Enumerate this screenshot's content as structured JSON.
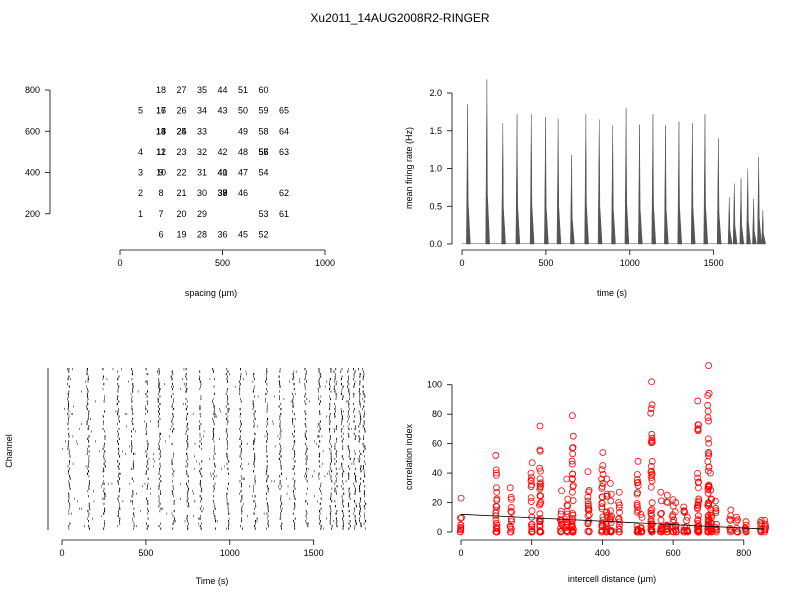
{
  "figure_title": "Xu2011_14AUG2008R2-RINGER",
  "chart_data": [
    {
      "id": "electrode-layout",
      "type": "scatter",
      "xlabel": "spacing (µm)",
      "ylabel": "",
      "xlim": [
        0,
        1000
      ],
      "ylim": [
        0,
        800
      ],
      "xticks": [
        0,
        500,
        1000
      ],
      "yticks": [
        200,
        400,
        600,
        800
      ],
      "labels": [
        {
          "text": "1",
          "x": 100,
          "y": 200
        },
        {
          "text": "2",
          "x": 100,
          "y": 300
        },
        {
          "text": "3",
          "x": 100,
          "y": 400
        },
        {
          "text": "4",
          "x": 100,
          "y": 500
        },
        {
          "text": "5",
          "x": 100,
          "y": 700
        },
        {
          "text": "6",
          "x": 200,
          "y": 100
        },
        {
          "text": "7",
          "x": 200,
          "y": 200
        },
        {
          "text": "8",
          "x": 200,
          "y": 300
        },
        {
          "text": "9",
          "x": 200,
          "y": 400
        },
        {
          "text": "10",
          "x": 200,
          "y": 400
        },
        {
          "text": "11",
          "x": 200,
          "y": 500
        },
        {
          "text": "12",
          "x": 200,
          "y": 500
        },
        {
          "text": "13",
          "x": 200,
          "y": 600
        },
        {
          "text": "14",
          "x": 200,
          "y": 600
        },
        {
          "text": "15",
          "x": 200,
          "y": 600
        },
        {
          "text": "16",
          "x": 200,
          "y": 700
        },
        {
          "text": "17",
          "x": 200,
          "y": 700
        },
        {
          "text": "18",
          "x": 200,
          "y": 800
        },
        {
          "text": "19",
          "x": 300,
          "y": 100
        },
        {
          "text": "20",
          "x": 300,
          "y": 200
        },
        {
          "text": "21",
          "x": 300,
          "y": 300
        },
        {
          "text": "22",
          "x": 300,
          "y": 400
        },
        {
          "text": "23",
          "x": 300,
          "y": 500
        },
        {
          "text": "24",
          "x": 300,
          "y": 600
        },
        {
          "text": "25",
          "x": 300,
          "y": 600
        },
        {
          "text": "26",
          "x": 300,
          "y": 700
        },
        {
          "text": "27",
          "x": 300,
          "y": 800
        },
        {
          "text": "28",
          "x": 400,
          "y": 100
        },
        {
          "text": "29",
          "x": 400,
          "y": 200
        },
        {
          "text": "30",
          "x": 400,
          "y": 300
        },
        {
          "text": "31",
          "x": 400,
          "y": 400
        },
        {
          "text": "32",
          "x": 400,
          "y": 500
        },
        {
          "text": "33",
          "x": 400,
          "y": 600
        },
        {
          "text": "34",
          "x": 400,
          "y": 700
        },
        {
          "text": "35",
          "x": 400,
          "y": 800
        },
        {
          "text": "36",
          "x": 500,
          "y": 100
        },
        {
          "text": "37",
          "x": 500,
          "y": 300
        },
        {
          "text": "38",
          "x": 500,
          "y": 300
        },
        {
          "text": "39",
          "x": 500,
          "y": 300
        },
        {
          "text": "40",
          "x": 500,
          "y": 400
        },
        {
          "text": "41",
          "x": 500,
          "y": 400
        },
        {
          "text": "42",
          "x": 500,
          "y": 500
        },
        {
          "text": "43",
          "x": 500,
          "y": 700
        },
        {
          "text": "44",
          "x": 500,
          "y": 800
        },
        {
          "text": "45",
          "x": 600,
          "y": 100
        },
        {
          "text": "46",
          "x": 600,
          "y": 300
        },
        {
          "text": "47",
          "x": 600,
          "y": 400
        },
        {
          "text": "48",
          "x": 600,
          "y": 500
        },
        {
          "text": "49",
          "x": 600,
          "y": 600
        },
        {
          "text": "50",
          "x": 600,
          "y": 700
        },
        {
          "text": "51",
          "x": 600,
          "y": 800
        },
        {
          "text": "52",
          "x": 700,
          "y": 100
        },
        {
          "text": "53",
          "x": 700,
          "y": 200
        },
        {
          "text": "54",
          "x": 700,
          "y": 400
        },
        {
          "text": "55",
          "x": 700,
          "y": 500
        },
        {
          "text": "56",
          "x": 700,
          "y": 500
        },
        {
          "text": "57",
          "x": 700,
          "y": 500
        },
        {
          "text": "58",
          "x": 700,
          "y": 600
        },
        {
          "text": "59",
          "x": 700,
          "y": 700
        },
        {
          "text": "60",
          "x": 700,
          "y": 800
        },
        {
          "text": "61",
          "x": 800,
          "y": 200
        },
        {
          "text": "62",
          "x": 800,
          "y": 300
        },
        {
          "text": "63",
          "x": 800,
          "y": 500
        },
        {
          "text": "64",
          "x": 800,
          "y": 600
        },
        {
          "text": "65",
          "x": 800,
          "y": 700
        }
      ]
    },
    {
      "id": "firing-rate",
      "type": "line",
      "xlabel": "time (s)",
      "ylabel": "mean firing rate (Hz)",
      "xlim": [
        0,
        1800
      ],
      "ylim": [
        0,
        2.0
      ],
      "xticks": [
        0,
        500,
        1000,
        1500
      ],
      "yticks": [
        0.0,
        0.5,
        1.0,
        1.5,
        2.0
      ],
      "color": "#555555",
      "bursts": [
        {
          "t": 35,
          "peak": 1.85
        },
        {
          "t": 150,
          "peak": 2.18
        },
        {
          "t": 245,
          "peak": 1.6
        },
        {
          "t": 330,
          "peak": 1.72
        },
        {
          "t": 415,
          "peak": 1.72
        },
        {
          "t": 500,
          "peak": 1.68
        },
        {
          "t": 575,
          "peak": 1.66
        },
        {
          "t": 655,
          "peak": 1.18
        },
        {
          "t": 740,
          "peak": 1.72
        },
        {
          "t": 820,
          "peak": 1.65
        },
        {
          "t": 900,
          "peak": 1.57
        },
        {
          "t": 980,
          "peak": 1.8
        },
        {
          "t": 1060,
          "peak": 1.58
        },
        {
          "t": 1140,
          "peak": 1.72
        },
        {
          "t": 1215,
          "peak": 1.57
        },
        {
          "t": 1295,
          "peak": 1.62
        },
        {
          "t": 1375,
          "peak": 1.6
        },
        {
          "t": 1450,
          "peak": 1.72
        },
        {
          "t": 1530,
          "peak": 1.4
        },
        {
          "t": 1595,
          "peak": 0.62
        },
        {
          "t": 1625,
          "peak": 0.8
        },
        {
          "t": 1665,
          "peak": 0.87
        },
        {
          "t": 1705,
          "peak": 1.0
        },
        {
          "t": 1740,
          "peak": 0.6
        },
        {
          "t": 1770,
          "peak": 1.15
        },
        {
          "t": 1795,
          "peak": 0.45
        }
      ]
    },
    {
      "id": "raster",
      "type": "scatter",
      "xlabel": "Time (s)",
      "ylabel": "Channel",
      "xlim": [
        0,
        1800
      ],
      "xticks": [
        0,
        500,
        1000,
        1500
      ],
      "channels": 65,
      "burst_times": [
        35,
        150,
        245,
        330,
        415,
        500,
        575,
        655,
        740,
        820,
        900,
        980,
        1060,
        1140,
        1215,
        1295,
        1375,
        1450,
        1530,
        1595,
        1625,
        1665,
        1705,
        1740,
        1770,
        1795
      ]
    },
    {
      "id": "correlation",
      "type": "scatter",
      "xlabel": "intercell distance (µm)",
      "ylabel": "correlation index",
      "xlim": [
        0,
        860
      ],
      "ylim": [
        0,
        110
      ],
      "xticks": [
        0,
        200,
        400,
        600,
        800
      ],
      "yticks": [
        0,
        20,
        40,
        60,
        80,
        100
      ],
      "color": "#ff0000",
      "fit_line": {
        "x": [
          0,
          860
        ],
        "y": [
          12,
          2
        ]
      },
      "columns": [
        {
          "x": 0,
          "max": 23
        },
        {
          "x": 100,
          "max": 52
        },
        {
          "x": 141,
          "max": 30
        },
        {
          "x": 200,
          "max": 47
        },
        {
          "x": 224,
          "max": 72
        },
        {
          "x": 283,
          "max": 28
        },
        {
          "x": 300,
          "max": 36
        },
        {
          "x": 316,
          "max": 79
        },
        {
          "x": 361,
          "max": 41
        },
        {
          "x": 400,
          "max": 54
        },
        {
          "x": 412,
          "max": 36
        },
        {
          "x": 424,
          "max": 33
        },
        {
          "x": 447,
          "max": 27
        },
        {
          "x": 500,
          "max": 48
        },
        {
          "x": 510,
          "max": 12
        },
        {
          "x": 539,
          "max": 102
        },
        {
          "x": 566,
          "max": 27
        },
        {
          "x": 583,
          "max": 25
        },
        {
          "x": 600,
          "max": 22
        },
        {
          "x": 608,
          "max": 20
        },
        {
          "x": 632,
          "max": 17
        },
        {
          "x": 640,
          "max": 10
        },
        {
          "x": 671,
          "max": 89
        },
        {
          "x": 700,
          "max": 113
        },
        {
          "x": 707,
          "max": 40
        },
        {
          "x": 721,
          "max": 21
        },
        {
          "x": 762,
          "max": 15
        },
        {
          "x": 781,
          "max": 10
        },
        {
          "x": 806,
          "max": 7
        },
        {
          "x": 849,
          "max": 8
        },
        {
          "x": 860,
          "max": 8
        }
      ]
    }
  ]
}
